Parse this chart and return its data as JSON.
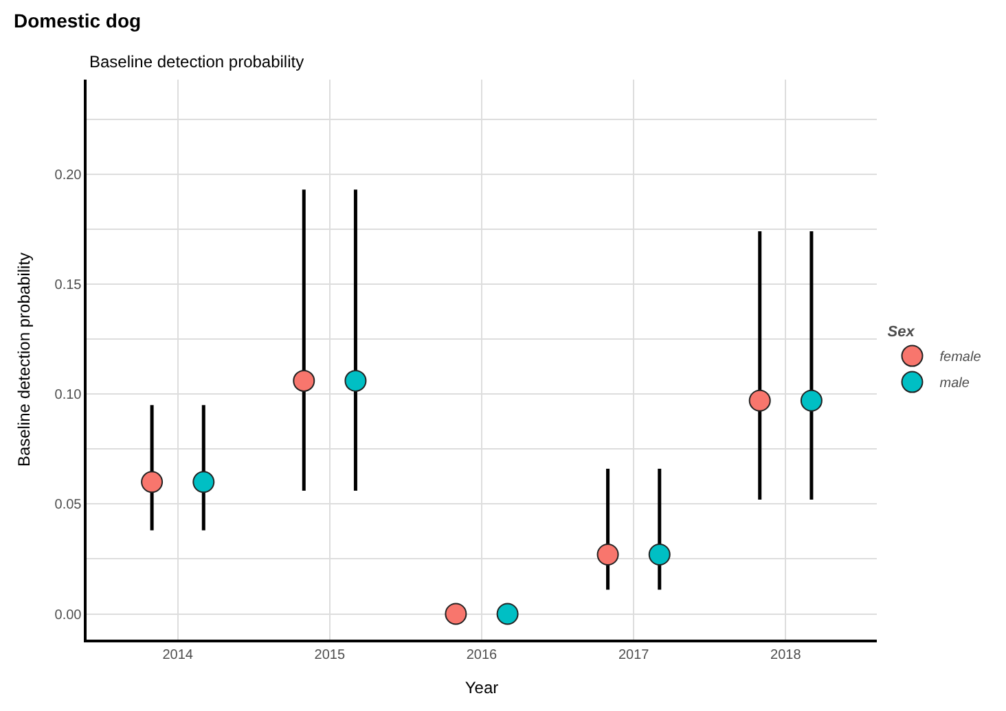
{
  "chart_data": {
    "type": "scatter",
    "title": "Domestic dog",
    "subtitle": "Baseline detection probability",
    "xlabel": "Year",
    "ylabel": "Baseline detection probability",
    "legend_title": "Sex",
    "categories": [
      "2014",
      "2015",
      "2016",
      "2017",
      "2018"
    ],
    "series": [
      {
        "name": "female",
        "color": "#f8766d",
        "values": [
          0.06,
          0.106,
          0.0,
          0.027,
          0.097
        ],
        "errors": [
          [
            0.038,
            0.095
          ],
          [
            0.056,
            0.193
          ],
          null,
          [
            0.011,
            0.066
          ],
          [
            0.052,
            0.174
          ]
        ]
      },
      {
        "name": "male",
        "color": "#00bfc4",
        "values": [
          0.06,
          0.106,
          0.0,
          0.027,
          0.097
        ],
        "errors": [
          [
            0.038,
            0.095
          ],
          [
            0.056,
            0.193
          ],
          null,
          [
            0.011,
            0.066
          ],
          [
            0.052,
            0.174
          ]
        ]
      }
    ],
    "ylim": [
      -0.0117,
      0.243
    ],
    "yticks": [
      {
        "value": 0,
        "label": "0.00"
      },
      {
        "value": 0.025,
        "label": null
      },
      0.05,
      {
        "value": 0.075,
        "label": null
      },
      {
        "value": 0.1,
        "label": "0.10"
      },
      {
        "value": 0.125,
        "label": null
      },
      0.15,
      {
        "value": 0.175,
        "label": null
      },
      {
        "value": 0.2,
        "label": "0.20"
      },
      {
        "value": 0.225,
        "label": null
      }
    ],
    "grid": true,
    "legend": "right",
    "marker": "circle"
  }
}
